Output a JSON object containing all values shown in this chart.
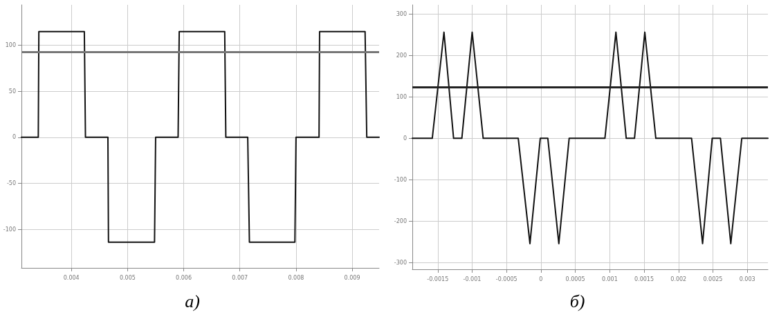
{
  "chart_data": [
    {
      "type": "line",
      "title": "а)",
      "color": "#111111",
      "grid": true,
      "x": [
        0.00311,
        0.00341,
        0.00342,
        0.00423,
        0.00425,
        0.00465,
        0.00466,
        0.00548,
        0.0055,
        0.0059,
        0.00592,
        0.00673,
        0.00675,
        0.00714,
        0.00717,
        0.00798,
        0.008,
        0.00841,
        0.00842,
        0.00923,
        0.00926,
        0.00948
      ],
      "values": [
        0,
        0,
        115,
        115,
        0,
        0,
        -114,
        -114,
        0,
        0,
        115,
        115,
        0,
        0,
        -114,
        -114,
        0,
        0,
        115,
        115,
        0,
        0
      ],
      "xlim": [
        0.00311,
        0.00948
      ],
      "xticks": [
        0.004,
        0.005,
        0.006,
        0.007,
        0.008,
        0.009
      ],
      "ylim": [
        -142,
        144
      ],
      "yticks": [
        -100,
        -50,
        0,
        50,
        100
      ],
      "ref_lines": [
        {
          "axis": "y",
          "value": 93,
          "color": "#777777"
        }
      ]
    },
    {
      "type": "line",
      "title": "б)",
      "color": "#111111",
      "grid": true,
      "x": [
        -0.00187,
        -0.00158,
        -0.00141,
        -0.00127,
        -0.00115,
        -0.001,
        -0.00084,
        -0.00033,
        -0.00016,
        -1e-05,
        0.0001,
        0.00026,
        0.00041,
        0.00093,
        0.00109,
        0.00124,
        0.00136,
        0.00151,
        0.00167,
        0.00219,
        0.00235,
        0.00249,
        0.00261,
        0.00276,
        0.00292,
        0.0033
      ],
      "values": [
        0,
        0,
        256,
        0,
        0,
        256,
        0,
        0,
        -254,
        0,
        0,
        -254,
        0,
        0,
        256,
        0,
        0,
        256,
        0,
        0,
        -254,
        0,
        0,
        -254,
        0,
        0
      ],
      "xlim": [
        -0.00187,
        0.0033
      ],
      "xticks": [
        -0.0015,
        -0.001,
        -0.0005,
        0,
        0.0005,
        0.001,
        0.0015,
        0.002,
        0.0025,
        0.003
      ],
      "ylim": [
        -316,
        322
      ],
      "yticks": [
        -300,
        -200,
        -100,
        0,
        100,
        200,
        300
      ],
      "ref_lines": [
        {
          "axis": "y",
          "value": 124,
          "color": "#222222"
        }
      ]
    }
  ]
}
